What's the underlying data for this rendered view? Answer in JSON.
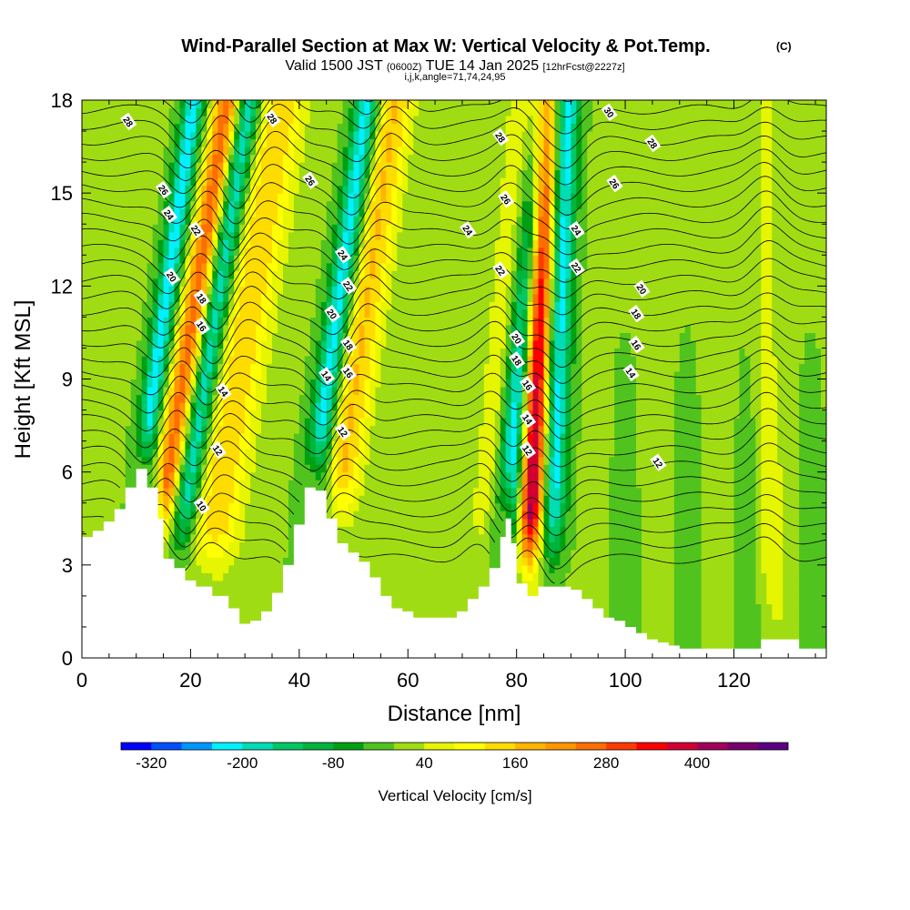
{
  "chart_data": {
    "type": "heatmap",
    "title": "Wind-Parallel Section at Max W: Vertical Velocity & Pot.Temp.",
    "title_mark": "(C)",
    "subtitle_main": "Valid 1500 JST",
    "subtitle_utc": "(0600Z)",
    "subtitle_date": "TUE 14 Jan 2025",
    "subtitle_fcst": "[12hrFcst@2227z]",
    "subtitle_indices": "i,j,k,angle=71,74,24,95",
    "xlabel": "Distance [nm]",
    "ylabel": "Height [Kft MSL]",
    "xlim": [
      0,
      137
    ],
    "ylim": [
      0,
      18
    ],
    "x_ticks": [
      0,
      20,
      40,
      60,
      80,
      100,
      120
    ],
    "x_tick_labels": [
      "0",
      "20",
      "40",
      "60",
      "80",
      "100",
      "120"
    ],
    "y_ticks": [
      0,
      3,
      6,
      9,
      12,
      15,
      18
    ],
    "y_tick_labels": [
      "0",
      "3",
      "6",
      "9",
      "12",
      "15",
      "18"
    ],
    "colorbar": {
      "label": "Vertical Velocity [cm/s]",
      "tick_labels": [
        "-320",
        "-200",
        "-80",
        "40",
        "160",
        "280",
        "400"
      ],
      "tick_values": [
        -320,
        -200,
        -80,
        40,
        160,
        280,
        400
      ],
      "colors": [
        "#0000ff",
        "#0050ff",
        "#0096ff",
        "#00f0ff",
        "#00dcb4",
        "#00c864",
        "#00b43c",
        "#00a014",
        "#50c31e",
        "#a0dc14",
        "#e6f500",
        "#ffff00",
        "#ffdc00",
        "#ffb400",
        "#ff9600",
        "#ff6e00",
        "#ff3c00",
        "#ff0000",
        "#d20032",
        "#a0005a",
        "#78006e",
        "#5a0082"
      ]
    },
    "terrain_profile": [
      [
        0,
        3.9
      ],
      [
        2,
        4.1
      ],
      [
        4,
        4.4
      ],
      [
        6,
        4.8
      ],
      [
        8,
        5.5
      ],
      [
        10,
        6.1
      ],
      [
        12,
        5.5
      ],
      [
        14,
        4.5
      ],
      [
        15,
        3.2
      ],
      [
        17,
        2.9
      ],
      [
        19,
        2.5
      ],
      [
        21,
        2.3
      ],
      [
        24,
        2.0
      ],
      [
        27,
        1.6
      ],
      [
        29,
        1.1
      ],
      [
        31,
        1.2
      ],
      [
        33,
        1.5
      ],
      [
        35,
        2.1
      ],
      [
        37,
        3.0
      ],
      [
        39,
        4.3
      ],
      [
        41,
        5.5
      ],
      [
        43,
        5.4
      ],
      [
        45,
        4.5
      ],
      [
        47,
        3.7
      ],
      [
        49,
        3.4
      ],
      [
        51,
        3.1
      ],
      [
        53,
        2.6
      ],
      [
        55,
        2.0
      ],
      [
        57,
        1.6
      ],
      [
        59,
        1.5
      ],
      [
        61,
        1.3
      ],
      [
        63,
        1.3
      ],
      [
        65,
        1.3
      ],
      [
        67,
        1.3
      ],
      [
        69,
        1.5
      ],
      [
        71,
        1.9
      ],
      [
        73,
        2.3
      ],
      [
        75,
        2.9
      ],
      [
        77,
        3.9
      ],
      [
        78,
        4.5
      ],
      [
        79,
        3.7
      ],
      [
        80,
        2.4
      ],
      [
        82,
        2.0
      ],
      [
        84,
        2.3
      ],
      [
        86,
        2.3
      ],
      [
        88,
        2.3
      ],
      [
        90,
        2.2
      ],
      [
        92,
        1.9
      ],
      [
        94,
        1.6
      ],
      [
        96,
        1.3
      ],
      [
        98,
        1.2
      ],
      [
        100,
        1.0
      ],
      [
        102,
        0.8
      ],
      [
        104,
        0.6
      ],
      [
        106,
        0.5
      ],
      [
        108,
        0.4
      ],
      [
        110,
        0.3
      ],
      [
        115,
        0.3
      ],
      [
        120,
        0.3
      ],
      [
        124,
        0.3
      ],
      [
        125,
        0.6
      ],
      [
        128,
        0.6
      ],
      [
        130,
        0.6
      ],
      [
        132,
        0.3
      ],
      [
        137,
        0.3
      ]
    ],
    "updrafts": [
      {
        "x": 16,
        "half_width": 2.5,
        "tilt": 0.9,
        "peak": 260
      },
      {
        "x": 26,
        "half_width": 4.5,
        "tilt": 0.9,
        "peak": 150
      },
      {
        "x": 48,
        "half_width": 3.5,
        "tilt": 0.8,
        "peak": 160
      },
      {
        "x": 83,
        "half_width": 2.3,
        "tilt": 0.2,
        "peak": 420
      },
      {
        "x": 75,
        "half_width": 3.0,
        "tilt": 0.5,
        "peak": 60
      },
      {
        "x": 126,
        "half_width": 2.0,
        "tilt": 0.0,
        "peak": 50
      }
    ],
    "downdrafts": [
      {
        "x": 11,
        "half_width": 2.0,
        "tilt": 0.8,
        "peak": -230
      },
      {
        "x": 20,
        "half_width": 2.3,
        "tilt": 0.9,
        "peak": -220
      },
      {
        "x": 43,
        "half_width": 2.3,
        "tilt": 0.8,
        "peak": -240
      },
      {
        "x": 79,
        "half_width": 2.3,
        "tilt": 0.5,
        "peak": -260
      },
      {
        "x": 87,
        "half_width": 2.2,
        "tilt": 0.2,
        "peak": -230
      }
    ],
    "isentrope_labels": [
      {
        "text": "28",
        "x": 8.5,
        "y": 17.3
      },
      {
        "text": "28",
        "x": 35,
        "y": 17.4
      },
      {
        "text": "30",
        "x": 97,
        "y": 17.6
      },
      {
        "text": "28",
        "x": 105,
        "y": 16.6
      },
      {
        "text": "28",
        "x": 77,
        "y": 16.8
      },
      {
        "text": "26",
        "x": 15,
        "y": 15.1
      },
      {
        "text": "26",
        "x": 42,
        "y": 15.4
      },
      {
        "text": "26",
        "x": 78,
        "y": 14.8
      },
      {
        "text": "26",
        "x": 98,
        "y": 15.3
      },
      {
        "text": "24",
        "x": 16,
        "y": 14.3
      },
      {
        "text": "24",
        "x": 48,
        "y": 13.0
      },
      {
        "text": "24",
        "x": 71,
        "y": 13.8
      },
      {
        "text": "24",
        "x": 91,
        "y": 13.8
      },
      {
        "text": "22",
        "x": 21,
        "y": 13.8
      },
      {
        "text": "22",
        "x": 49,
        "y": 12.0
      },
      {
        "text": "22",
        "x": 77,
        "y": 12.5
      },
      {
        "text": "22",
        "x": 91,
        "y": 12.6
      },
      {
        "text": "20",
        "x": 16.5,
        "y": 12.3
      },
      {
        "text": "20",
        "x": 46,
        "y": 11.1
      },
      {
        "text": "20",
        "x": 80,
        "y": 10.3
      },
      {
        "text": "20",
        "x": 103,
        "y": 11.9
      },
      {
        "text": "18",
        "x": 22,
        "y": 11.6
      },
      {
        "text": "18",
        "x": 49,
        "y": 10.1
      },
      {
        "text": "18",
        "x": 80,
        "y": 9.6
      },
      {
        "text": "18",
        "x": 102,
        "y": 11.1
      },
      {
        "text": "16",
        "x": 22,
        "y": 10.7
      },
      {
        "text": "16",
        "x": 49,
        "y": 9.2
      },
      {
        "text": "16",
        "x": 82,
        "y": 8.8
      },
      {
        "text": "16",
        "x": 102,
        "y": 10.1
      },
      {
        "text": "14",
        "x": 26,
        "y": 8.6
      },
      {
        "text": "14",
        "x": 45,
        "y": 9.1
      },
      {
        "text": "14",
        "x": 82,
        "y": 7.7
      },
      {
        "text": "14",
        "x": 101,
        "y": 9.2
      },
      {
        "text": "12",
        "x": 25,
        "y": 6.7
      },
      {
        "text": "12",
        "x": 48,
        "y": 7.3
      },
      {
        "text": "12",
        "x": 82,
        "y": 6.7
      },
      {
        "text": "12",
        "x": 106,
        "y": 6.3
      },
      {
        "text": "10",
        "x": 22,
        "y": 4.9
      }
    ]
  }
}
